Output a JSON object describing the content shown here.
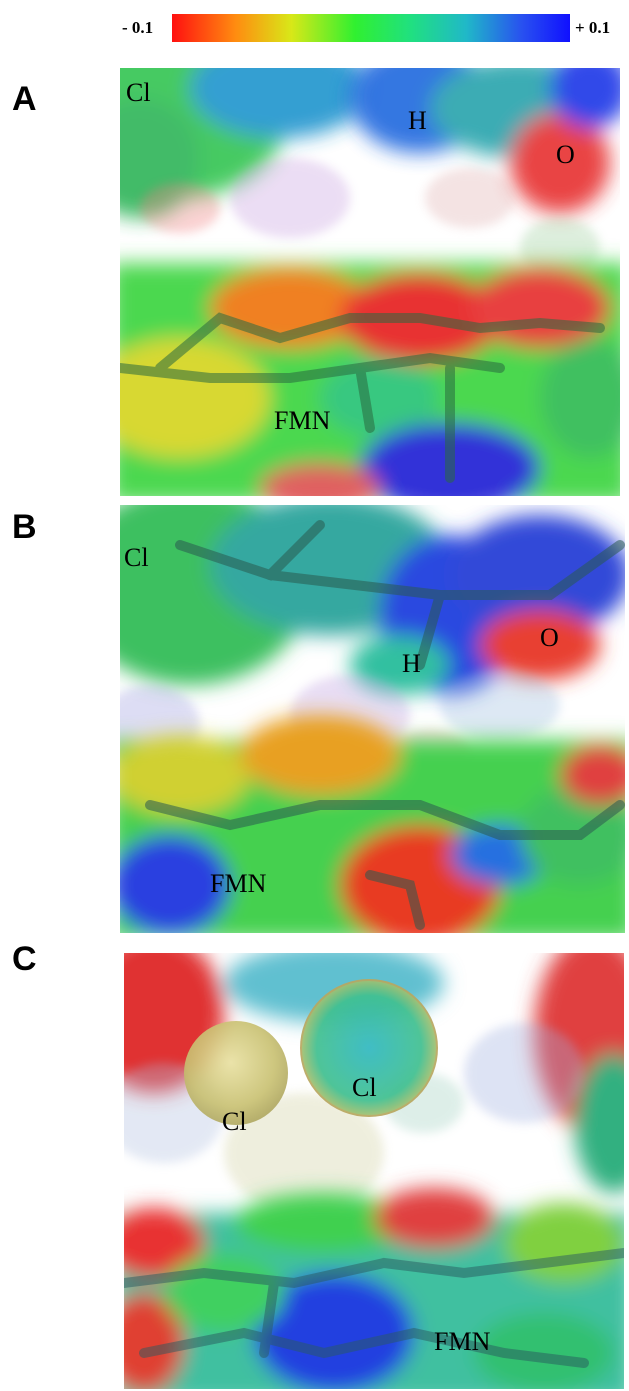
{
  "scale": {
    "min_label": "- 0.1",
    "max_label": "+ 0.1"
  },
  "panels": [
    {
      "letter": "A",
      "labels": {
        "cl": "Cl",
        "h": "H",
        "o": "O",
        "fmn": "FMN"
      }
    },
    {
      "letter": "B",
      "labels": {
        "cl": "Cl",
        "h": "H",
        "o": "O",
        "fmn": "FMN"
      }
    },
    {
      "letter": "C",
      "labels": {
        "cl1": "Cl",
        "cl2": "Cl",
        "fmn": "FMN"
      }
    }
  ]
}
